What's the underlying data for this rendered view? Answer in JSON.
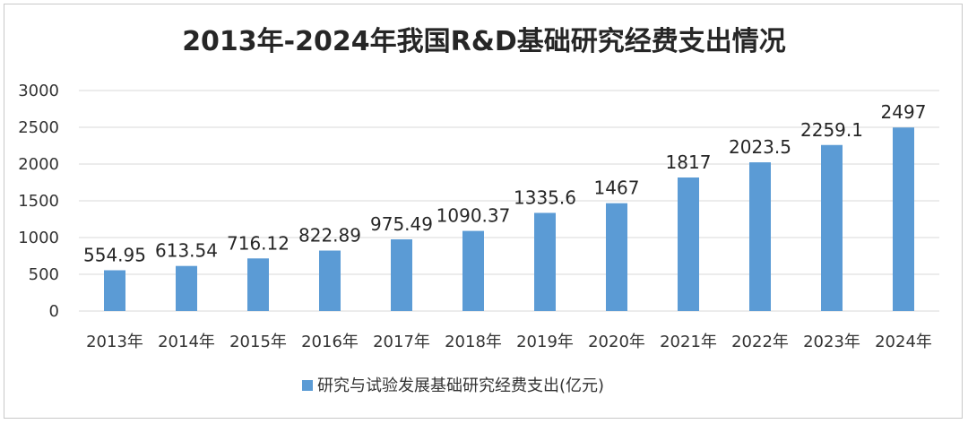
{
  "chart_data": {
    "type": "bar",
    "title": "2013年-2024年我国R&D基础研究经费支出情况",
    "categories": [
      "2013年",
      "2014年",
      "2015年",
      "2016年",
      "2017年",
      "2018年",
      "2019年",
      "2020年",
      "2021年",
      "2022年",
      "2023年",
      "2024年"
    ],
    "series": [
      {
        "name": "研究与试验发展基础研究经费支出(亿元)",
        "values": [
          554.95,
          613.54,
          716.12,
          822.89,
          975.49,
          1090.37,
          1335.6,
          1467,
          1817,
          2023.5,
          2259.1,
          2497
        ],
        "data_labels": [
          "554.95",
          "613.54",
          "716.12",
          "822.89",
          "975.49",
          "1090.37",
          "1335.6",
          "1467",
          "1817",
          "2023.5",
          "2259.1",
          "2497"
        ]
      }
    ],
    "ylim": [
      0,
      3000
    ],
    "yticks": [
      0,
      500,
      1000,
      1500,
      2000,
      2500,
      3000
    ],
    "grid": true,
    "legend_position": "bottom",
    "colors": {
      "bar": "#5b9bd5",
      "grid": "#d9d9d9",
      "text": "#333333"
    }
  }
}
